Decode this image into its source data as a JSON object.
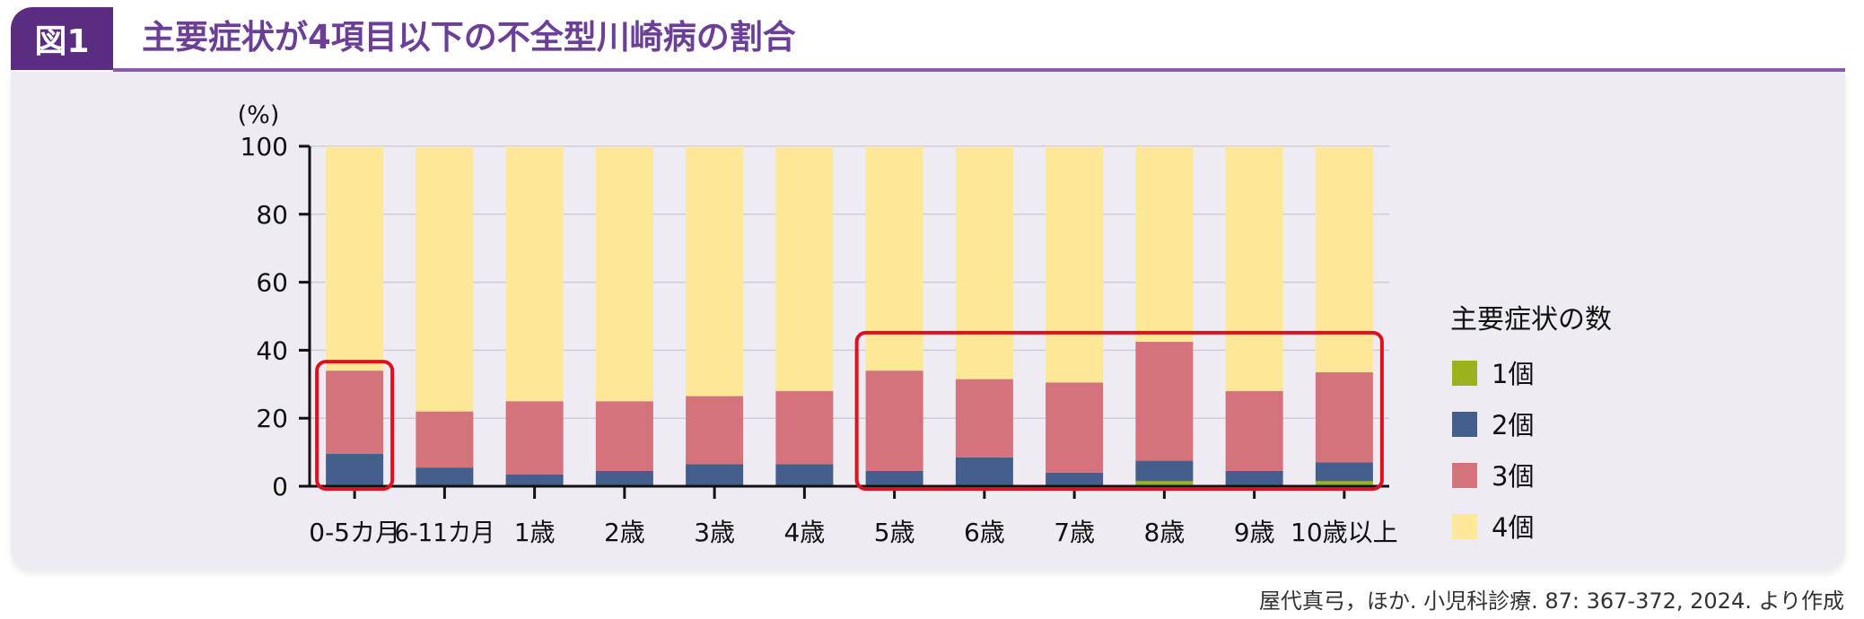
{
  "figure_label": "図1",
  "title": "主要症状が4項目以下の不全型川崎病の割合",
  "source": "屋代真弓，ほか. 小児科診療. 87: 367-372, 2024. より作成",
  "legend_title": "主要症状の数",
  "colors": {
    "accent": "#5a2d82",
    "title_text": "#6c3f97",
    "panel_bg": "#eeebf3",
    "highlight_box": "#e0101e",
    "series": [
      "#9bb21d",
      "#445f8b",
      "#d4737b",
      "#fde897"
    ]
  },
  "chart_data": {
    "type": "bar",
    "stacked": true,
    "ylabel": "(%)",
    "ylim": [
      0,
      100
    ],
    "yticks": [
      0,
      20,
      40,
      60,
      80,
      100
    ],
    "grid": true,
    "legend_position": "right",
    "categories": [
      "0-5カ月",
      "6-11カ月",
      "1歳",
      "2歳",
      "3歳",
      "4歳",
      "5歳",
      "6歳",
      "7歳",
      "8歳",
      "9歳",
      "10歳以上"
    ],
    "series": [
      {
        "name": "1個",
        "values": [
          0,
          0,
          0,
          0,
          0,
          0,
          0,
          0,
          0,
          1.5,
          0,
          1.5
        ]
      },
      {
        "name": "2個",
        "values": [
          9.5,
          5.5,
          3.5,
          4.5,
          6.5,
          6.5,
          4.5,
          8.5,
          4,
          6,
          4.5,
          5.5
        ]
      },
      {
        "name": "3個",
        "values": [
          24.5,
          16.5,
          21.5,
          20.5,
          20,
          21.5,
          29.5,
          23,
          26.5,
          35,
          23.5,
          26.5
        ]
      },
      {
        "name": "4個",
        "values": [
          66,
          78,
          75,
          75,
          73.5,
          72,
          66,
          68.5,
          69.5,
          57.5,
          72,
          66.5
        ]
      }
    ],
    "highlight_groups": [
      [
        "0-5カ月"
      ],
      [
        "5歳",
        "6歳",
        "7歳",
        "8歳",
        "9歳",
        "10歳以上"
      ]
    ]
  }
}
